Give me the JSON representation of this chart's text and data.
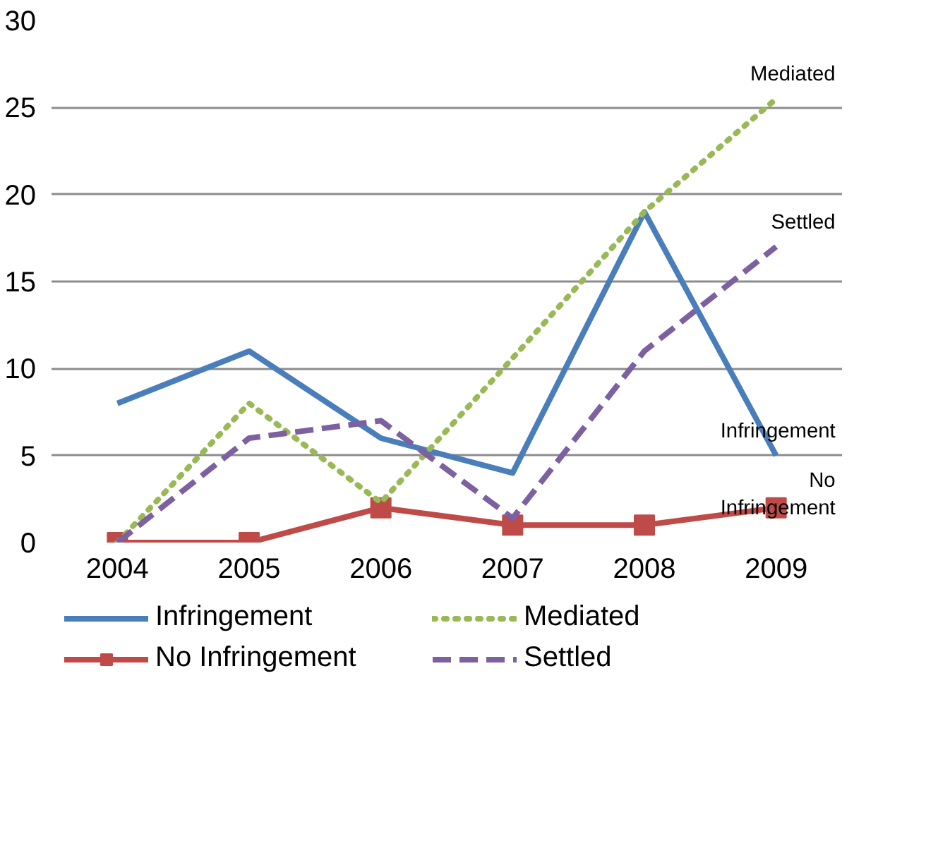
{
  "chart_data": {
    "type": "line",
    "categories": [
      "2004",
      "2005",
      "2006",
      "2007",
      "2008",
      "2009"
    ],
    "ylim": [
      0,
      30
    ],
    "yticks": [
      0,
      5,
      10,
      15,
      20,
      25,
      30
    ],
    "grid": "y",
    "legend": "bottom",
    "series": [
      {
        "name": "Infringement",
        "color": "#4a7ebb",
        "values": [
          8,
          11,
          6,
          4,
          19,
          5
        ],
        "line_style": "solid",
        "marker": "none"
      },
      {
        "name": "No Infringement",
        "color": "#be4b48",
        "values": [
          0,
          0,
          2,
          1,
          1,
          2
        ],
        "line_style": "solid",
        "marker": "square"
      },
      {
        "name": "Mediated",
        "color": "#98b954",
        "values": [
          0,
          8,
          2.3,
          10.6,
          19,
          25.5
        ],
        "line_style": "dotted",
        "marker": "none"
      },
      {
        "name": "Settled",
        "color": "#7d60a0",
        "values": [
          0,
          6,
          7,
          1.4,
          11,
          17
        ],
        "line_style": "dashed",
        "marker": "none"
      }
    ],
    "annotations": [
      {
        "text": "Mediated",
        "x": "2009",
        "y": 25.5
      },
      {
        "text": "Settled",
        "x": "2009",
        "y": 17
      },
      {
        "text": "Infringement",
        "x": "2009",
        "y": 5
      },
      {
        "text": "No Infringement",
        "x": "2009",
        "y": 2
      }
    ]
  }
}
